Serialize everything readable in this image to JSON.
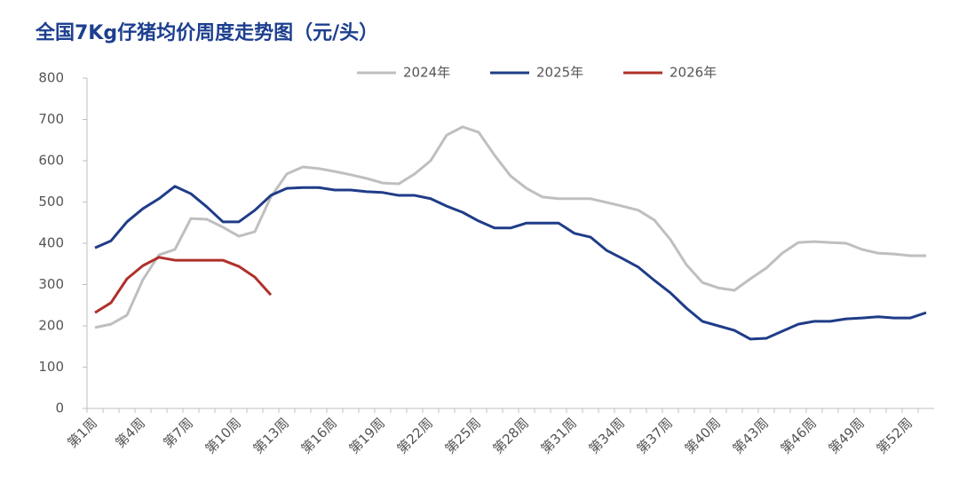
{
  "chart_data": {
    "type": "line",
    "title": "全国7Kg仔猪均价周度走势图（元/头）",
    "categories": [
      "第1周",
      null,
      null,
      "第4周",
      null,
      null,
      "第7周",
      null,
      null,
      "第10周",
      null,
      null,
      "第13周",
      null,
      null,
      "第16周",
      null,
      null,
      "第19周",
      null,
      null,
      "第22周",
      null,
      null,
      "第25周",
      null,
      null,
      "第28周",
      null,
      null,
      "第31周",
      null,
      null,
      "第34周",
      null,
      null,
      "第37周",
      null,
      null,
      "第40周",
      null,
      null,
      "第43周",
      null,
      null,
      "第46周",
      null,
      null,
      "第49周",
      null,
      null,
      "第52周",
      null
    ],
    "series": [
      {
        "name": "2024年",
        "color": "#bfbfbf",
        "values": [
          196,
          204,
          226,
          312,
          372,
          385,
          460,
          458,
          439,
          417,
          428,
          512,
          568,
          585,
          581,
          574,
          566,
          557,
          546,
          544,
          568,
          600,
          662,
          682,
          669,
          613,
          563,
          533,
          512,
          508,
          508,
          508,
          499,
          490,
          480,
          456,
          409,
          348,
          305,
          292,
          286,
          314,
          340,
          376,
          402,
          404,
          402,
          400,
          385,
          376,
          374,
          370,
          370
        ]
      },
      {
        "name": "2025年",
        "color": "#1f3c88",
        "values": [
          389,
          406,
          452,
          484,
          508,
          538,
          520,
          488,
          452,
          452,
          480,
          516,
          533,
          535,
          535,
          529,
          529,
          525,
          523,
          516,
          516,
          508,
          490,
          475,
          454,
          437,
          437,
          449,
          449,
          449,
          424,
          415,
          383,
          363,
          342,
          310,
          280,
          243,
          211,
          200,
          189,
          168,
          170,
          187,
          204,
          211,
          211,
          217,
          219,
          222,
          219,
          219,
          232
        ]
      },
      {
        "name": "2026年",
        "color": "#b0302a",
        "values": [
          232,
          256,
          314,
          346,
          366,
          359,
          359,
          359,
          359,
          344,
          318,
          275,
          null,
          null,
          null,
          null,
          null,
          null,
          null,
          null,
          null,
          null,
          null,
          null,
          null,
          null,
          null,
          null,
          null,
          null,
          null,
          null,
          null,
          null,
          null,
          null,
          null,
          null,
          null,
          null,
          null,
          null,
          null,
          null,
          null,
          null,
          null,
          null,
          null,
          null,
          null,
          null,
          null
        ]
      }
    ],
    "ylim": [
      0,
      800
    ],
    "yticks": [
      0,
      100,
      200,
      300,
      400,
      500,
      600,
      700,
      800
    ]
  }
}
